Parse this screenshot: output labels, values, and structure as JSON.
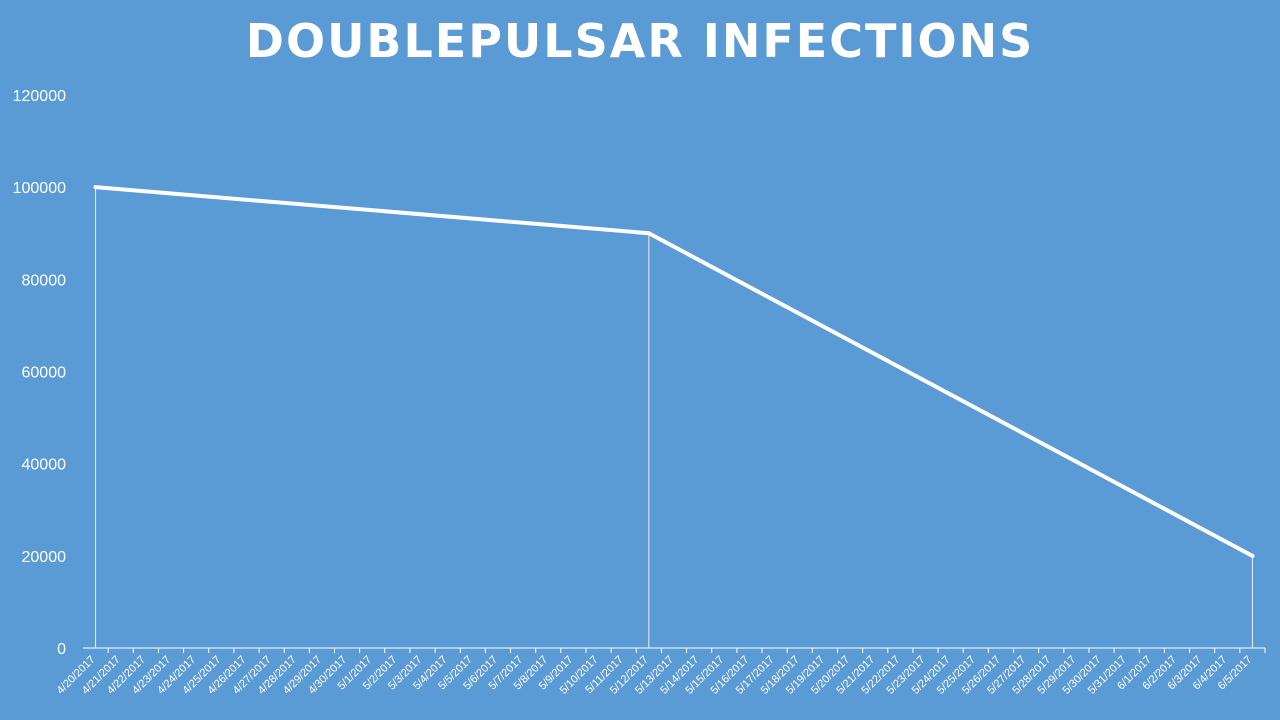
{
  "chart_data": {
    "type": "line",
    "title": "DOUBLEPULSAR INFECTIONS",
    "xlabel": "",
    "ylabel": "",
    "ylim": [
      0,
      120000
    ],
    "y_ticks": [
      "0",
      "20000",
      "40000",
      "60000",
      "80000",
      "100000",
      "120000"
    ],
    "categories": [
      "4/20/2017",
      "4/21/2017",
      "4/22/2017",
      "4/23/2017",
      "4/24/2017",
      "4/25/2017",
      "4/26/2017",
      "4/27/2017",
      "4/28/2017",
      "4/29/2017",
      "4/30/2017",
      "5/1/2017",
      "5/2/2017",
      "5/3/2017",
      "5/4/2017",
      "5/5/2017",
      "5/6/2017",
      "5/7/2017",
      "5/8/2017",
      "5/9/2017",
      "5/10/2017",
      "5/11/2017",
      "5/12/2017",
      "5/13/2017",
      "5/14/2017",
      "5/15/2017",
      "5/16/2017",
      "5/17/2017",
      "5/18/2017",
      "5/19/2017",
      "5/20/2017",
      "5/21/2017",
      "5/22/2017",
      "5/23/2017",
      "5/24/2017",
      "5/25/2017",
      "5/26/2017",
      "5/27/2017",
      "5/28/2017",
      "5/29/2017",
      "5/30/2017",
      "5/31/2017",
      "6/1/2017",
      "6/2/2017",
      "6/3/2017",
      "6/4/2017",
      "6/5/2017"
    ],
    "series": [
      {
        "points": [
          {
            "x": "4/20/2017",
            "y": 100000
          },
          {
            "x": "5/12/2017",
            "y": 90000
          },
          {
            "x": "6/5/2017",
            "y": 20000
          }
        ]
      }
    ],
    "drop_lines": true,
    "grid": false,
    "legend": "none",
    "colors": {
      "background": "#5b9bd5",
      "line": "#ffffff",
      "text": "#ffffff"
    }
  }
}
